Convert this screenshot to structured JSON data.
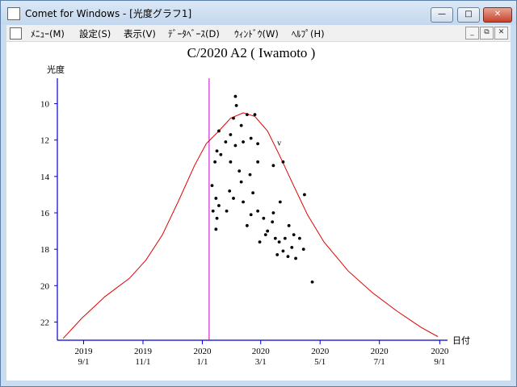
{
  "window": {
    "title": "Comet for Windows - [光度グラフ1]",
    "menu": [
      "ﾒﾆｭｰ(M)",
      "設定(S)",
      "表示(V)",
      "ﾃﾞｰﾀﾍﾞｰｽ(D)",
      "ｳｨﾝﾄﾞｳ(W)",
      "ﾍﾙﾌﾟ(H)"
    ]
  },
  "chart_data": {
    "type": "scatter",
    "title": "C/2020 A2 ( Iwamoto )",
    "y_label": "光度",
    "x_label": "日付",
    "xlim": [
      "2019-08-05",
      "2020-09-09"
    ],
    "xticks": [
      {
        "value": "2019-09-01",
        "label": "2019 9/1"
      },
      {
        "value": "2019-11-01",
        "label": "2019 11/1"
      },
      {
        "value": "2020-01-01",
        "label": "2020 1/1"
      },
      {
        "value": "2020-03-01",
        "label": "2020 3/1"
      },
      {
        "value": "2020-05-01",
        "label": "2020 5/1"
      },
      {
        "value": "2020-07-01",
        "label": "2020 7/1"
      },
      {
        "value": "2020-09-01",
        "label": "2020 9/1"
      }
    ],
    "ylim": [
      23,
      8.6
    ],
    "yticks": [
      10,
      12,
      14,
      16,
      18,
      20,
      22
    ],
    "axis_color": "#0000cc",
    "points": {
      "color": "#000000",
      "x": [
        "2020-02-04",
        "2020-02-05",
        "2020-02-02",
        "2020-02-16",
        "2020-02-24",
        "2020-02-10",
        "2020-01-30",
        "2020-01-18",
        "2020-01-25",
        "2020-02-04",
        "2020-01-16",
        "2020-02-12",
        "2020-02-20",
        "2020-02-27",
        "2020-01-14",
        "2020-01-20",
        "2020-01-30",
        "2020-02-08",
        "2020-02-19",
        "2020-02-27",
        "2020-03-14",
        "2020-03-24",
        "2020-01-11",
        "2020-01-15",
        "2020-01-18",
        "2020-01-16",
        "2020-01-26",
        "2020-02-02",
        "2020-02-12",
        "2020-02-20",
        "2020-02-16",
        "2020-02-27",
        "2020-03-04",
        "2020-03-08",
        "2020-03-13",
        "2020-03-16",
        "2020-03-20",
        "2020-03-24",
        "2020-03-18",
        "2020-03-29",
        "2020-04-02",
        "2020-04-06",
        "2020-04-10",
        "2020-04-14",
        "2020-03-30",
        "2020-04-04",
        "2020-03-21",
        "2020-04-15",
        "2020-04-23",
        "2020-01-15",
        "2020-01-12",
        "2020-02-29",
        "2020-03-06",
        "2020-03-26",
        "2020-03-14",
        "2020-02-10",
        "2020-01-29",
        "2020-02-22"
      ],
      "y": [
        9.6,
        10.1,
        10.8,
        10.6,
        10.6,
        11.2,
        11.7,
        11.5,
        12.1,
        12.3,
        12.6,
        12.1,
        11.9,
        12.2,
        13.2,
        12.8,
        13.2,
        13.7,
        13.9,
        13.2,
        13.4,
        13.2,
        14.5,
        15.2,
        15.6,
        16.3,
        15.9,
        15.2,
        15.4,
        16.1,
        16.7,
        15.9,
        16.3,
        17.0,
        16.5,
        17.4,
        17.6,
        18.1,
        18.3,
        18.4,
        17.9,
        18.5,
        17.4,
        18.0,
        16.7,
        17.2,
        15.4,
        15.0,
        19.8,
        16.9,
        15.9,
        17.6,
        17.2,
        17.4,
        16.0,
        14.3,
        14.8,
        14.9
      ]
    },
    "curve": {
      "color": "#e00000",
      "x": [
        "2019-08-11",
        "2019-08-30",
        "2019-09-23",
        "2019-10-18",
        "2019-11-04",
        "2019-11-21",
        "2019-12-07",
        "2019-12-24",
        "2020-01-05",
        "2020-01-18",
        "2020-01-30",
        "2020-02-12",
        "2020-02-24",
        "2020-03-08",
        "2020-03-20",
        "2020-04-02",
        "2020-04-18",
        "2020-05-05",
        "2020-05-30",
        "2020-06-24",
        "2020-07-19",
        "2020-08-13",
        "2020-08-30"
      ],
      "y": [
        22.9,
        21.8,
        20.6,
        19.6,
        18.6,
        17.2,
        15.4,
        13.4,
        12.2,
        11.5,
        10.8,
        10.5,
        10.7,
        11.5,
        12.8,
        14.3,
        16.1,
        17.6,
        19.2,
        20.4,
        21.4,
        22.3,
        22.8
      ]
    },
    "marker_line": {
      "x": "2020-01-08",
      "color": "#cc00cc"
    },
    "annotations": [
      {
        "text": "v",
        "x": "2020-03-20",
        "y": 12.3
      }
    ]
  }
}
